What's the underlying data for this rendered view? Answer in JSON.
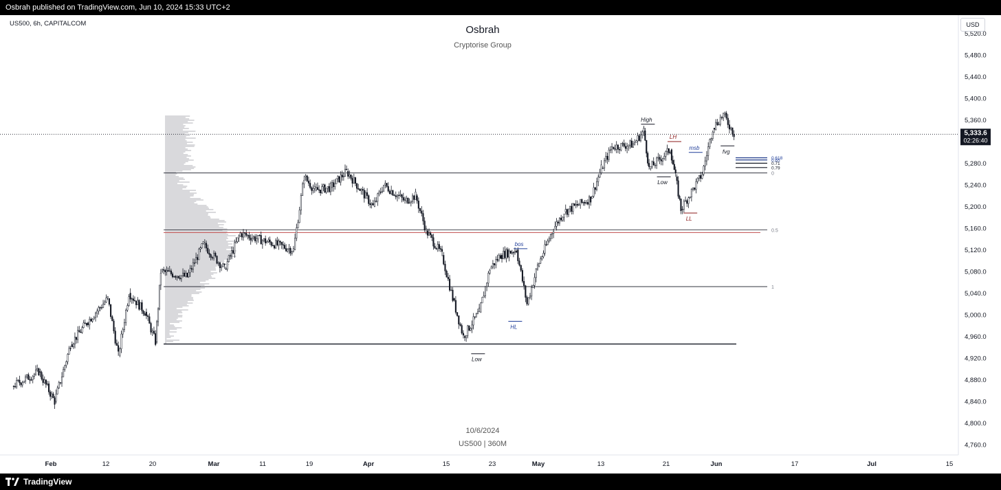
{
  "header": {
    "published_text": "Osbrah published on TradingView.com, Jun 10, 2024 15:33 UTC+2"
  },
  "symbol_info": "US500, 6h, CAPITALCOM",
  "currency_button": "USD",
  "watermark": {
    "title": "Osbrah",
    "subtitle": "Cryptorise Group",
    "date": "10/6/2024",
    "symbol_timeframe": "US500 | 360M"
  },
  "footer": {
    "brand": "TradingView"
  },
  "price_label": {
    "value": "5,333.6",
    "countdown": "02:26:40"
  },
  "chart_data": {
    "type": "candlestick",
    "title": "",
    "price_axis": {
      "range": [
        4730,
        5550
      ],
      "ticks": [
        "5,520.0",
        "5,480.0",
        "5,440.0",
        "5,400.0",
        "5,360.0",
        "5,320.0",
        "5,280.0",
        "5,240.0",
        "5,200.0",
        "5,160.0",
        "5,120.0",
        "5,080.0",
        "5,040.0",
        "5,000.0",
        "4,960.0",
        "4,920.0",
        "4,880.0",
        "4,840.0",
        "4,800.0",
        "4,760.0"
      ]
    },
    "time_axis": {
      "ticks": [
        "Feb",
        "12",
        "20",
        "Mar",
        "11",
        "19",
        "Apr",
        "15",
        "23",
        "May",
        "13",
        "21",
        "Jun",
        "17",
        "Jul",
        "15"
      ],
      "major": [
        "Feb",
        "Mar",
        "Apr",
        "May",
        "Jun",
        "Jul"
      ]
    },
    "current_price": 5333.6,
    "price_series": [
      [
        "2024-01-25",
        4868
      ],
      [
        "2024-01-30",
        4895
      ],
      [
        "2024-02-02",
        4840
      ],
      [
        "2024-02-05",
        4945
      ],
      [
        "2024-02-08",
        4985
      ],
      [
        "2024-02-12",
        5030
      ],
      [
        "2024-02-14",
        4925
      ],
      [
        "2024-02-16",
        5040
      ],
      [
        "2024-02-19",
        5005
      ],
      [
        "2024-02-21",
        4950
      ],
      [
        "2024-02-22",
        5080
      ],
      [
        "2024-02-27",
        5070
      ],
      [
        "2024-03-01",
        5130
      ],
      [
        "2024-03-05",
        5085
      ],
      [
        "2024-03-08",
        5150
      ],
      [
        "2024-03-13",
        5135
      ],
      [
        "2024-03-18",
        5120
      ],
      [
        "2024-03-20",
        5255
      ],
      [
        "2024-03-22",
        5230
      ],
      [
        "2024-03-25",
        5235
      ],
      [
        "2024-03-28",
        5265
      ],
      [
        "2024-04-02",
        5200
      ],
      [
        "2024-04-04",
        5240
      ],
      [
        "2024-04-08",
        5210
      ],
      [
        "2024-04-10",
        5220
      ],
      [
        "2024-04-12",
        5155
      ],
      [
        "2024-04-15",
        5110
      ],
      [
        "2024-04-17",
        5030
      ],
      [
        "2024-04-19",
        4960
      ],
      [
        "2024-04-22",
        5005
      ],
      [
        "2024-04-24",
        5085
      ],
      [
        "2024-04-26",
        5110
      ],
      [
        "2024-04-29",
        5120
      ],
      [
        "2024-05-01",
        5020
      ],
      [
        "2024-05-03",
        5090
      ],
      [
        "2024-05-06",
        5160
      ],
      [
        "2024-05-08",
        5190
      ],
      [
        "2024-05-13",
        5215
      ],
      [
        "2024-05-15",
        5270
      ],
      [
        "2024-05-17",
        5310
      ],
      [
        "2024-05-21",
        5315
      ],
      [
        "2024-05-23",
        5340
      ],
      [
        "2024-05-24",
        5270
      ],
      [
        "2024-05-28",
        5305
      ],
      [
        "2024-05-29",
        5255
      ],
      [
        "2024-05-30",
        5195
      ],
      [
        "2024-06-03",
        5260
      ],
      [
        "2024-06-05",
        5345
      ],
      [
        "2024-06-07",
        5370
      ],
      [
        "2024-06-09",
        5334
      ]
    ],
    "levels": [
      {
        "price": 5262,
        "label": "0"
      },
      {
        "price": 5157,
        "label": "0.5"
      },
      {
        "price": 5052,
        "label": "1"
      }
    ],
    "annotations": [
      {
        "text": "High",
        "date": "2024-05-23",
        "price": 5352
      },
      {
        "text": "LH",
        "date": "2024-05-28",
        "price": 5320
      },
      {
        "text": "Low",
        "date": "2024-05-26",
        "price": 5255
      },
      {
        "text": "msb",
        "date": "2024-06-01",
        "price": 5300
      },
      {
        "text": "LL",
        "date": "2024-05-31",
        "price": 5188
      },
      {
        "text": "fvg",
        "date": "2024-06-07",
        "price": 5312
      },
      {
        "text": "bos",
        "date": "2024-04-29",
        "price": 5122
      },
      {
        "text": "HL",
        "date": "2024-04-28",
        "price": 4988
      },
      {
        "text": "Low",
        "date": "2024-04-21",
        "price": 4928
      }
    ],
    "fib_levels": [
      "0.618",
      "0.65",
      "0.71",
      "0.79"
    ],
    "colors": {
      "candle": "#131722",
      "level_line": "#787b86",
      "red_line": "#c14b4b",
      "blue_lines": "#1e3a8a",
      "dark_red_text": "#8b1a1a",
      "blue_text": "#1f3d99",
      "volume_profile": "#d9d9dc"
    }
  }
}
